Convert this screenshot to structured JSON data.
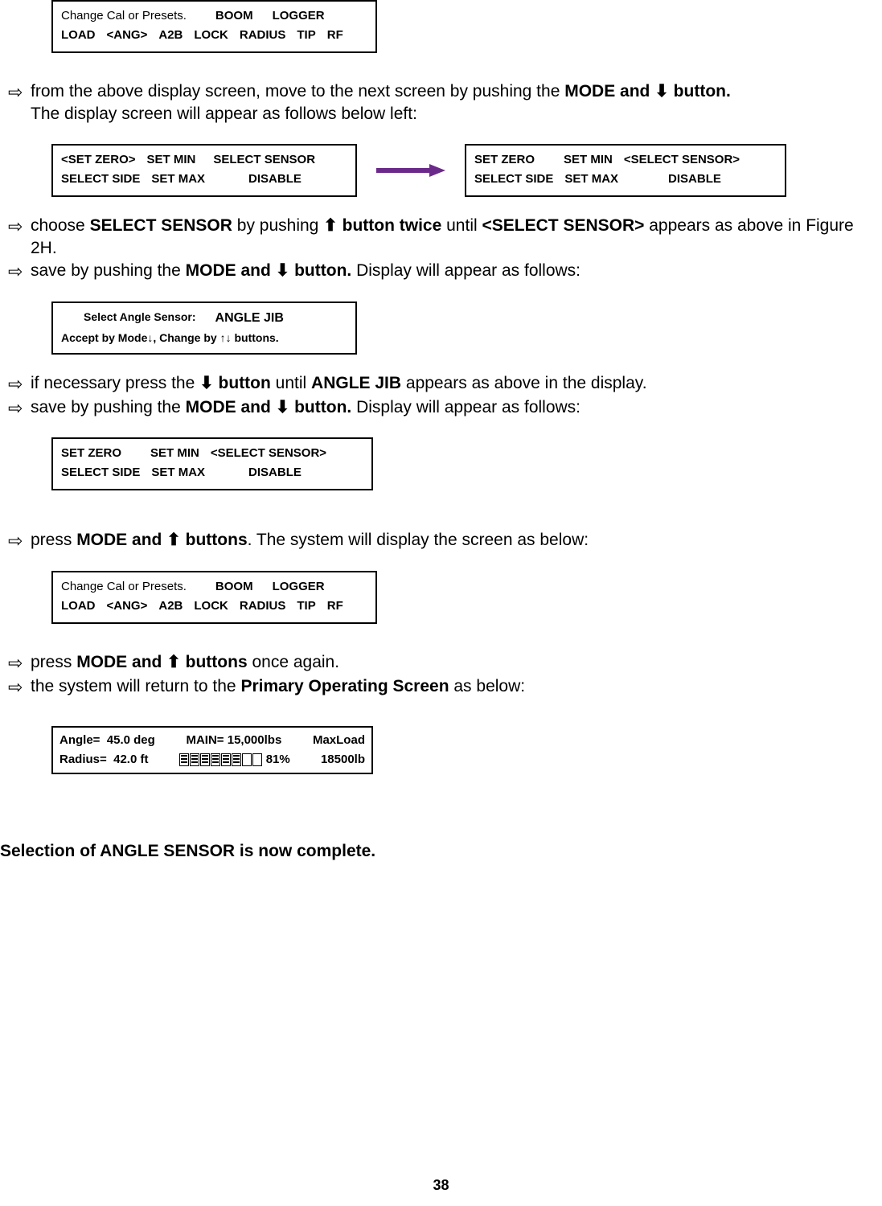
{
  "icons": {
    "right_open_arrow": "⇨",
    "down_solid": "⬇",
    "up_solid": "⬆"
  },
  "screens": {
    "cal_presets": {
      "line1_a": "Change Cal or Presets.",
      "line1_b": "BOOM",
      "line1_c": "LOGGER",
      "line2_a": "LOAD",
      "line2_b": "<ANG>",
      "line2_c": "A2B",
      "line2_d": "LOCK",
      "line2_e": "RADIUS",
      "line2_f": "TIP",
      "line2_g": "RF"
    },
    "setzero_left": {
      "line1_a": "<SET ZERO>",
      "line1_b": "SET MIN",
      "line1_c": "SELECT SENSOR",
      "line2_a": "SELECT SIDE",
      "line2_b": "SET MAX",
      "line2_c": "DISABLE"
    },
    "setzero_right": {
      "line1_a": "SET ZERO",
      "line1_b": "SET MIN",
      "line1_c": "<SELECT SENSOR>",
      "line2_a": "SELECT SIDE",
      "line2_b": "SET MAX",
      "line2_c": "DISABLE"
    },
    "angle_sensor": {
      "line1_a": "Select Angle Sensor:",
      "line1_b": "ANGLE  JIB",
      "line2_full": "Accept   by   Mode↓,  Change  by  ↑↓   buttons."
    },
    "setzero_again": {
      "line1_a": "SET ZERO",
      "line1_b": "SET MIN",
      "line1_c": "<SELECT SENSOR>",
      "line2_a": "SELECT SIDE",
      "line2_b": "SET MAX",
      "line2_c": "DISABLE"
    },
    "primary": {
      "angle_label": "Angle=",
      "angle_value": "45.0 deg",
      "radius_label": "Radius=",
      "radius_value": "42.0 ft",
      "main_label": "MAIN= 15,000lbs",
      "maxload_label": "MaxLoad",
      "percent": "81%",
      "maxload_value": "18500lb",
      "filled_segments": 6,
      "total_segments": 8
    }
  },
  "steps": {
    "s1a": "from the above display screen, move to the next screen by pushing the ",
    "s1b": "MODE and ",
    "s1c": " button.",
    "s1_line2": "The display screen will appear as follows below left:",
    "s2a": "choose ",
    "s2b": "SELECT SENSOR",
    "s2c": "  by pushing ",
    "s2d": " button twice",
    "s2e": " until  ",
    "s2f": "<SELECT SENSOR>",
    "s2g": "  appears as above in Figure 2H.",
    "s3a": "save by pushing the ",
    "s3b": "MODE and ",
    "s3c": " button.",
    "s3d": "   Display will appear as follows:",
    "s4a": "if necessary press the ",
    "s4b": " button",
    "s4c": " until ",
    "s4d": "ANGLE JIB",
    "s4e": " appears as above in the display.",
    "s5a": "save by pushing the ",
    "s5b": "MODE and ",
    "s5c": " button.",
    "s5d": "   Display will appear as follows:",
    "s6a": "press ",
    "s6b": "MODE and ",
    "s6c": " buttons",
    "s6d": ".  The system will display the screen as below:",
    "s7a": "press ",
    "s7b": "MODE and ",
    "s7c": " buttons",
    "s7d": " once again.",
    "s8a": "the system will return to the ",
    "s8b": "Primary Operating Screen",
    "s8c": " as below:"
  },
  "completion": "Selection of ANGLE SENSOR is now complete.",
  "page_number": "38",
  "arrow_color": "#6b2a8a"
}
